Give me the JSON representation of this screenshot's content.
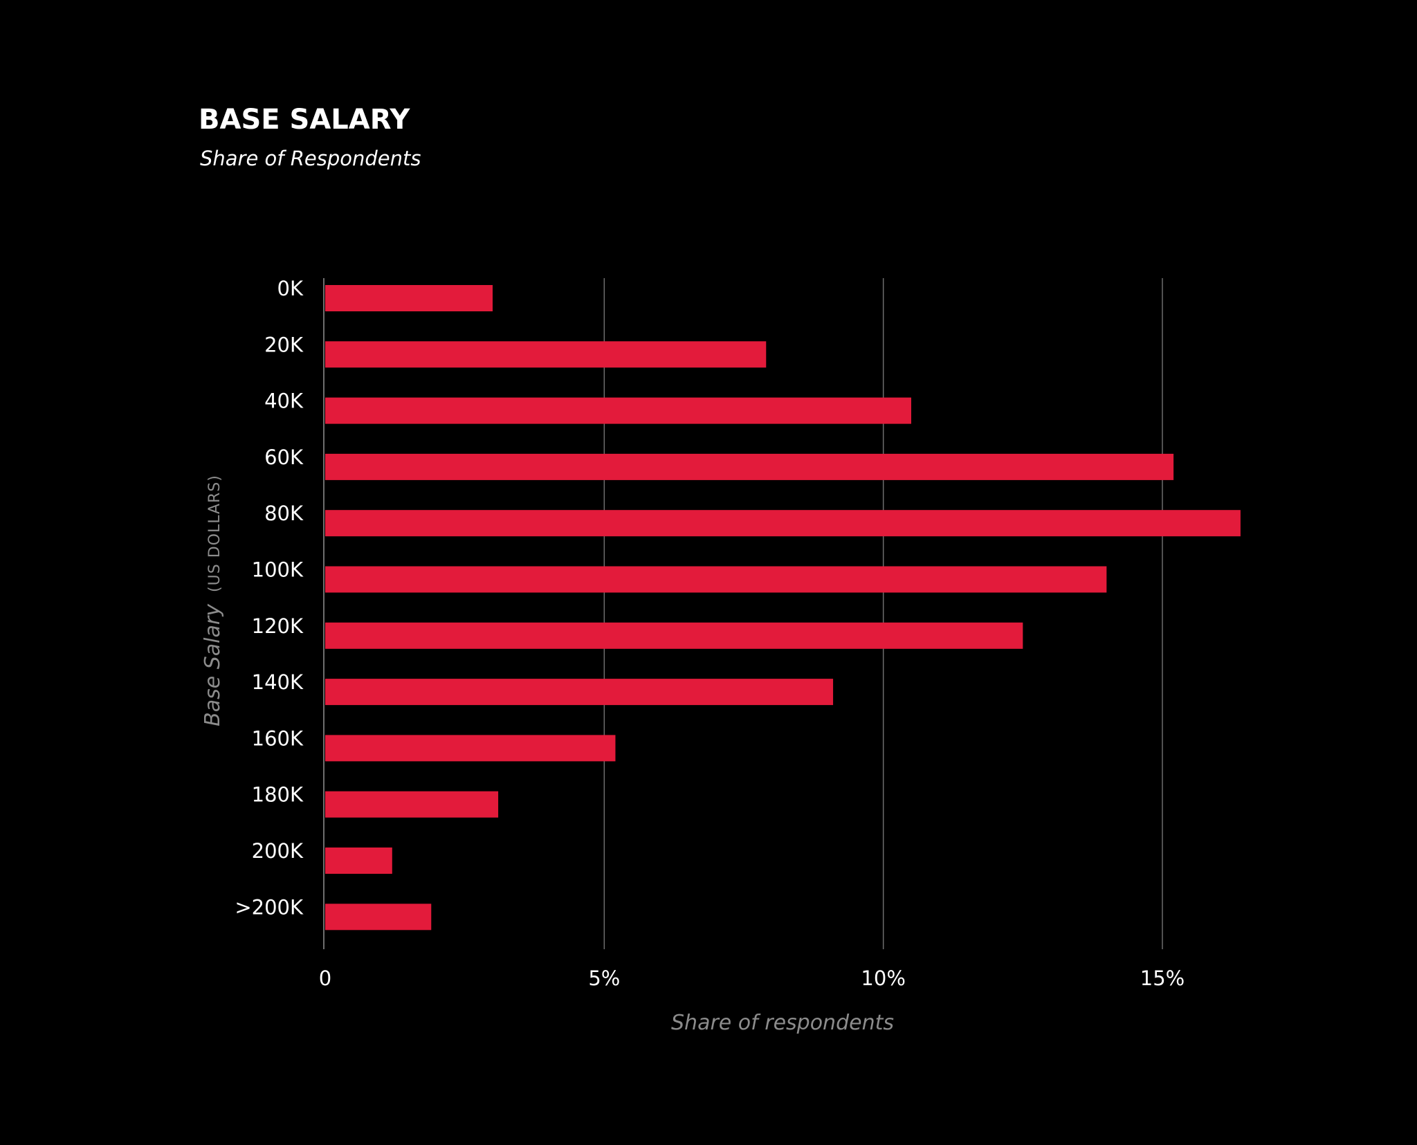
{
  "chart_data": {
    "type": "bar",
    "orientation": "horizontal",
    "title": "BASE SALARY",
    "subtitle": "Share of Respondents",
    "xlabel": "Share of respondents",
    "ylabel": "Base Salary",
    "ylabel_unit": "(US DOLLARS)",
    "categories": [
      "0K",
      "20K",
      "40K",
      "60K",
      "80K",
      "100K",
      "120K",
      "140K",
      "160K",
      "180K",
      "200K",
      ">200K"
    ],
    "values": [
      3.0,
      7.9,
      10.5,
      15.2,
      16.4,
      14.0,
      12.5,
      9.1,
      5.2,
      3.1,
      1.2,
      1.9
    ],
    "xlim": [
      0,
      18
    ],
    "xticks": [
      0,
      5,
      10,
      15
    ],
    "xtick_labels": [
      "0",
      "5%",
      "10%",
      "15%"
    ],
    "grid": true,
    "legend": "none",
    "colors": {
      "background": "#000000",
      "bar": "#e31b3b",
      "gridline": "#6e6e6e",
      "text": "#ffffff",
      "axis_label": "#8c8c8c"
    }
  }
}
